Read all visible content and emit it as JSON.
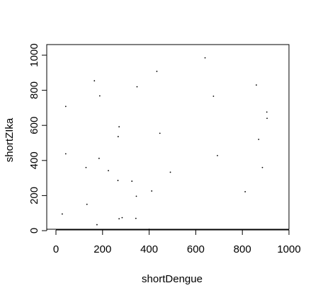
{
  "chart_data": {
    "type": "scatter",
    "title": "",
    "xlabel": "shortDengue",
    "ylabel": "shortZIka",
    "xlim": [
      0,
      1000
    ],
    "ylim": [
      0,
      1000
    ],
    "xticks": [
      0,
      200,
      400,
      600,
      800,
      1000
    ],
    "yticks": [
      0,
      200,
      400,
      600,
      800,
      1000
    ],
    "xtick_labels": [
      "0",
      "200",
      "400",
      "600",
      "800",
      "1000"
    ],
    "ytick_labels": [
      "0",
      "200",
      "400",
      "600",
      "800",
      "1000"
    ],
    "grid": false,
    "point_color": "#000000",
    "points": [
      {
        "x": 640,
        "y": 985
      },
      {
        "x": 433,
        "y": 908
      },
      {
        "x": 165,
        "y": 854
      },
      {
        "x": 348,
        "y": 820
      },
      {
        "x": 860,
        "y": 830
      },
      {
        "x": 188,
        "y": 768
      },
      {
        "x": 676,
        "y": 766
      },
      {
        "x": 42,
        "y": 708
      },
      {
        "x": 905,
        "y": 676
      },
      {
        "x": 906,
        "y": 640
      },
      {
        "x": 271,
        "y": 592
      },
      {
        "x": 446,
        "y": 555
      },
      {
        "x": 267,
        "y": 536
      },
      {
        "x": 870,
        "y": 520
      },
      {
        "x": 42,
        "y": 438
      },
      {
        "x": 693,
        "y": 428
      },
      {
        "x": 185,
        "y": 412
      },
      {
        "x": 129,
        "y": 360
      },
      {
        "x": 886,
        "y": 360
      },
      {
        "x": 225,
        "y": 342
      },
      {
        "x": 491,
        "y": 333
      },
      {
        "x": 266,
        "y": 286
      },
      {
        "x": 326,
        "y": 282
      },
      {
        "x": 411,
        "y": 226
      },
      {
        "x": 812,
        "y": 222
      },
      {
        "x": 345,
        "y": 196
      },
      {
        "x": 133,
        "y": 150
      },
      {
        "x": 27,
        "y": 95
      },
      {
        "x": 284,
        "y": 74
      },
      {
        "x": 271,
        "y": 68
      },
      {
        "x": 343,
        "y": 70
      },
      {
        "x": 176,
        "y": 34
      },
      {
        "x": 400,
        "y": 8
      }
    ]
  }
}
